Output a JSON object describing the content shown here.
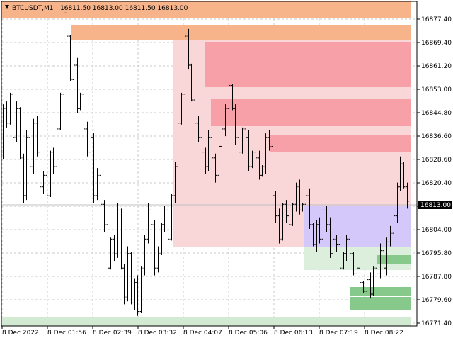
{
  "header": {
    "symbol_timeframe": "BTCUSDT,M1",
    "ohlc_text": "16811.50 16813.00 16811.50 16813.00",
    "menu_icon": "triangle-down-icon"
  },
  "price_axis": {
    "ticks": [
      "16877.40",
      "16869.40",
      "16861.20",
      "16853.00",
      "16844.80",
      "16836.60",
      "16828.60",
      "16820.40",
      "16812.20",
      "16804.00",
      "16795.80",
      "16787.80",
      "16779.60",
      "16771.40"
    ],
    "current_price_label": "16813.00"
  },
  "time_axis": {
    "ticks": [
      "8 Dec 2022",
      "8 Dec 01:56",
      "8 Dec 02:39",
      "8 Dec 03:32",
      "8 Dec 04:07",
      "8 Dec 05:06",
      "8 Dec 06:13",
      "8 Dec 07:19",
      "8 Dec 08:22"
    ]
  },
  "colors": {
    "background": "#ffffff",
    "grid": "#c8c8c8",
    "bars": "#000000",
    "orange_zone": "#f7b38a",
    "pink_light": "#f9d6d8",
    "pink_dark": "#f7a0a8",
    "lavender": "#d4c8fa",
    "green_light": "#dcefdc",
    "green_dark": "#86c98a",
    "green_pale": "#d2ead2",
    "price_line": "#c0c0c0"
  },
  "chart_data": {
    "type": "ohlc",
    "symbol": "BTCUSDT",
    "timeframe": "M1",
    "ylim": [
      16770,
      16882
    ],
    "last_price": 16813.0,
    "path": [
      16830,
      16845,
      16840,
      16850,
      16835,
      16845,
      16828,
      16815,
      16835,
      16825,
      16840,
      16830,
      16818,
      16822,
      16815,
      16830,
      16825,
      16838,
      16850,
      16878,
      16870,
      16855,
      16860,
      16845,
      16850,
      16838,
      16830,
      16835,
      16815,
      16822,
      16812,
      16805,
      16790,
      16800,
      16795,
      16810,
      16790,
      16780,
      16795,
      16778,
      16785,
      16775,
      16790,
      16800,
      16810,
      16805,
      16790,
      16795,
      16805,
      16810,
      16800,
      16815,
      16825,
      16840,
      16850,
      16870,
      16860,
      16848,
      16840,
      16835,
      16830,
      16825,
      16835,
      16828,
      16822,
      16832,
      16838,
      16845,
      16853,
      16845,
      16835,
      16830,
      16838,
      16835,
      16825,
      16830,
      16828,
      16822,
      16825,
      16835,
      16832,
      16815,
      16808,
      16800,
      16812,
      16808,
      16805,
      16812,
      16818,
      16810,
      16812,
      16815,
      16805,
      16798,
      16805,
      16800,
      16810,
      16805,
      16795,
      16800,
      16798,
      16790,
      16795,
      16800,
      16795,
      16788,
      16790,
      16785,
      16782,
      16786,
      16781,
      16790,
      16788,
      16796,
      16790,
      16799,
      16802,
      16808,
      16818,
      16826,
      16818,
      16813
    ]
  }
}
